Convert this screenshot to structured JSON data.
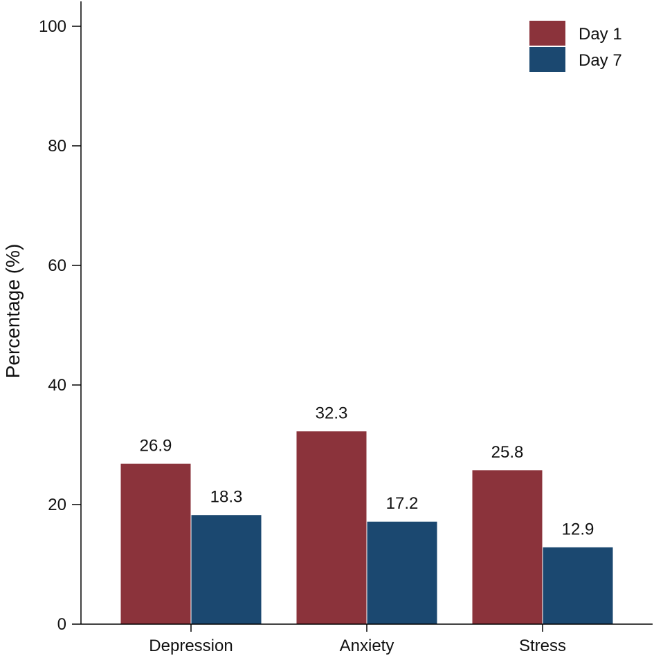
{
  "chart_data": {
    "type": "bar",
    "categories": [
      "Depression",
      "Anxiety",
      "Stress"
    ],
    "series": [
      {
        "name": "Day 1",
        "values": [
          26.9,
          32.3,
          25.8
        ],
        "color": "#8b333b"
      },
      {
        "name": "Day 7",
        "values": [
          18.3,
          17.2,
          12.9
        ],
        "color": "#1b4870"
      }
    ],
    "data_labels": [
      [
        "26.9",
        "32.3",
        "25.8"
      ],
      [
        "18.3",
        "17.2",
        "12.9"
      ]
    ],
    "ylabel": "Percentage (%)",
    "xlabel": "",
    "ylim": [
      0,
      100
    ],
    "yticks": [
      0,
      20,
      40,
      60,
      80,
      100
    ],
    "grid": false,
    "legend_position": "top-right"
  }
}
